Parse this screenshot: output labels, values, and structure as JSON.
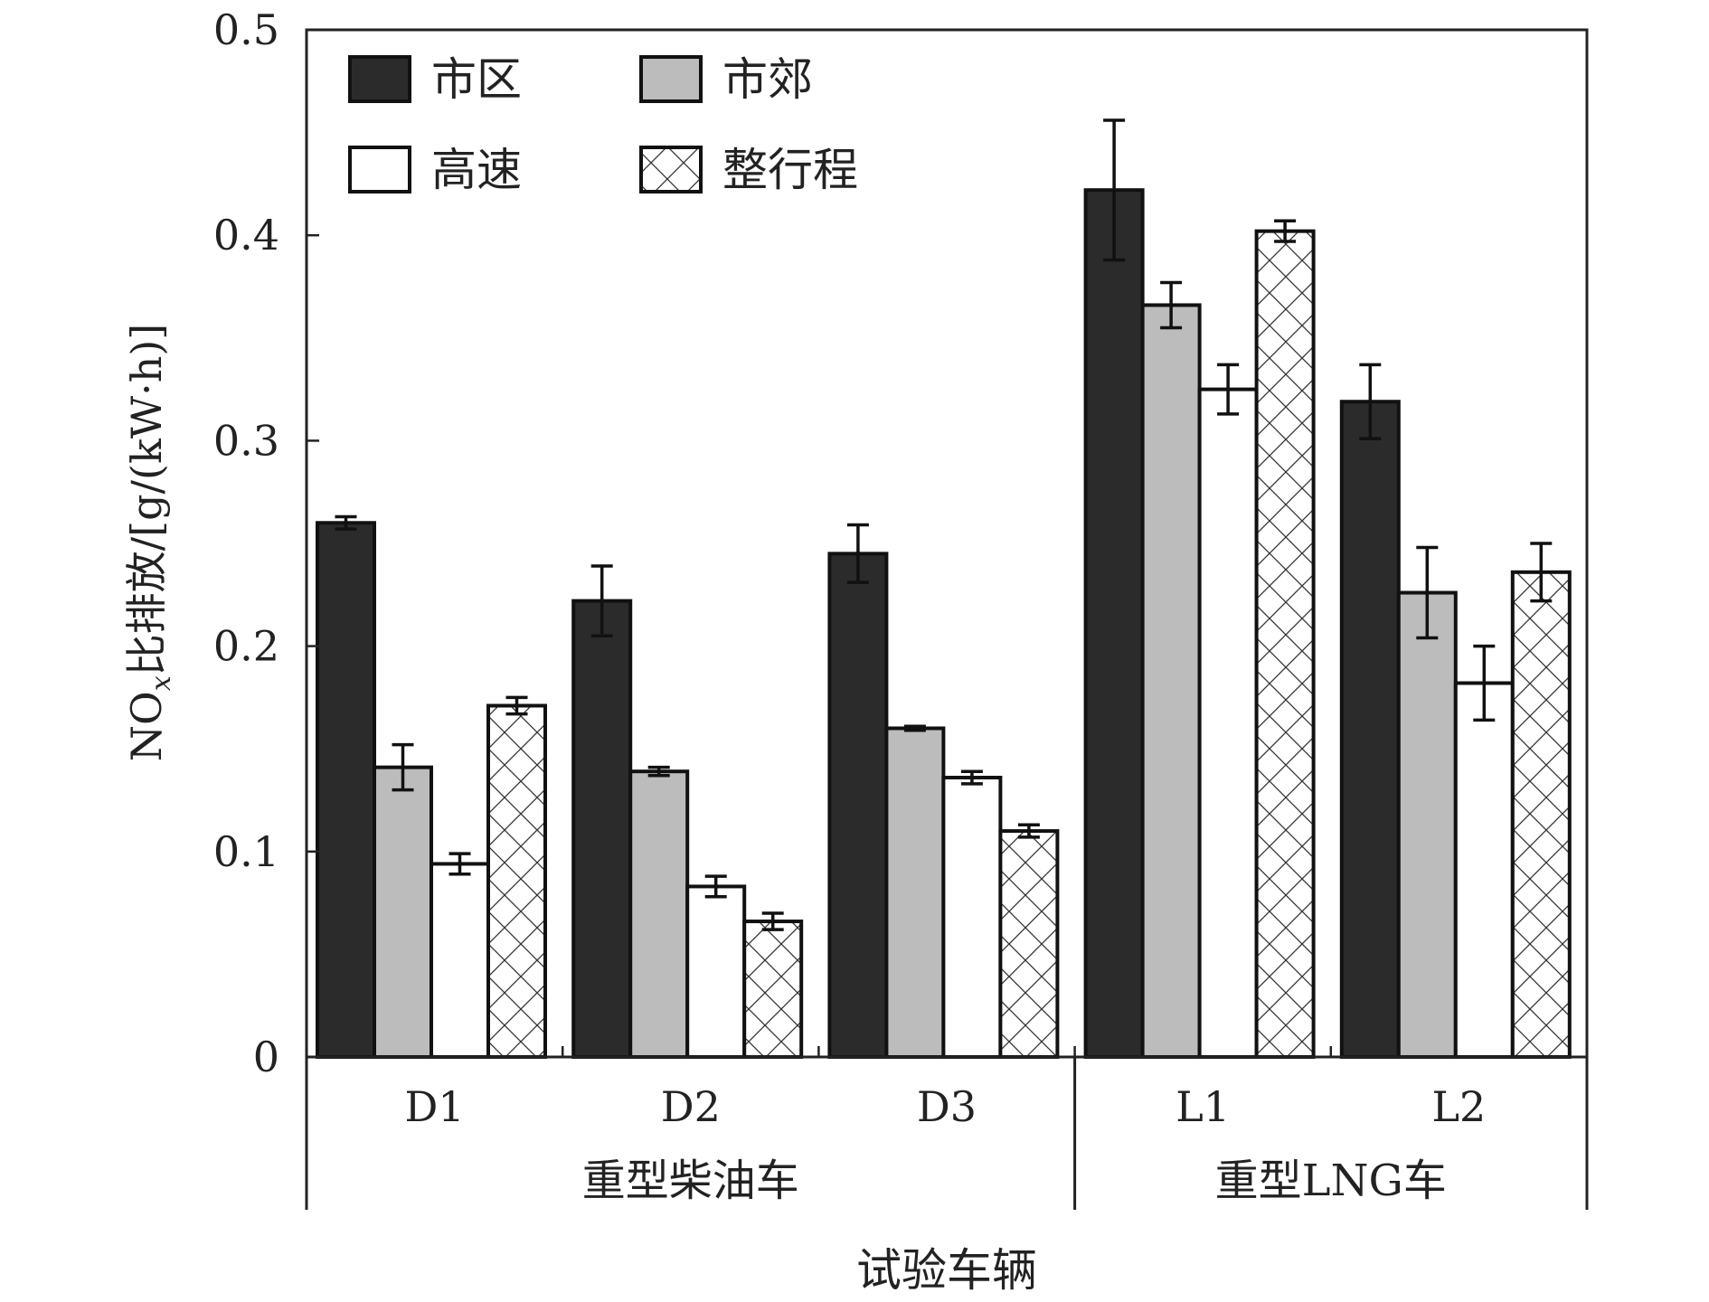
{
  "chart_data": {
    "type": "bar",
    "title": "",
    "xlabel": "试验车辆",
    "ylabel": "NOx比排放/[g/(kW·h)]",
    "ylabel_parts": {
      "main": "NO",
      "sub": "x",
      "rest": "比排放/[g/(kW·h)]"
    },
    "ylim": [
      0,
      0.5
    ],
    "yticks": [
      0,
      0.1,
      0.2,
      0.3,
      0.4,
      0.5
    ],
    "ytick_labels": [
      "0",
      "0.1",
      "0.2",
      "0.3",
      "0.4",
      "0.5"
    ],
    "grid": false,
    "legend_position": "top-left",
    "categories": [
      "D1",
      "D2",
      "D3",
      "L1",
      "L2"
    ],
    "groups": [
      {
        "label": "重型柴油车",
        "categories": [
          "D1",
          "D2",
          "D3"
        ]
      },
      {
        "label": "重型LNG车",
        "categories": [
          "L1",
          "L2"
        ]
      }
    ],
    "series": [
      {
        "name": "市区",
        "fill": "#2b2b2b",
        "pattern": "solid",
        "values": [
          0.26,
          0.222,
          0.245,
          0.422,
          0.319
        ],
        "errors": [
          0.003,
          0.017,
          0.014,
          0.034,
          0.018
        ]
      },
      {
        "name": "市郊",
        "fill": "#bcbcbc",
        "pattern": "solid",
        "values": [
          0.141,
          0.139,
          0.16,
          0.366,
          0.226
        ],
        "errors": [
          0.011,
          0.002,
          0.001,
          0.011,
          0.022
        ]
      },
      {
        "name": "高速",
        "fill": "#ffffff",
        "pattern": "solid",
        "values": [
          0.094,
          0.083,
          0.136,
          0.325,
          0.182
        ],
        "errors": [
          0.005,
          0.005,
          0.003,
          0.012,
          0.018
        ]
      },
      {
        "name": "整行程",
        "fill": "#ffffff",
        "pattern": "crosshatch",
        "values": [
          0.171,
          0.066,
          0.11,
          0.402,
          0.236
        ],
        "errors": [
          0.004,
          0.004,
          0.003,
          0.005,
          0.014
        ]
      }
    ]
  }
}
